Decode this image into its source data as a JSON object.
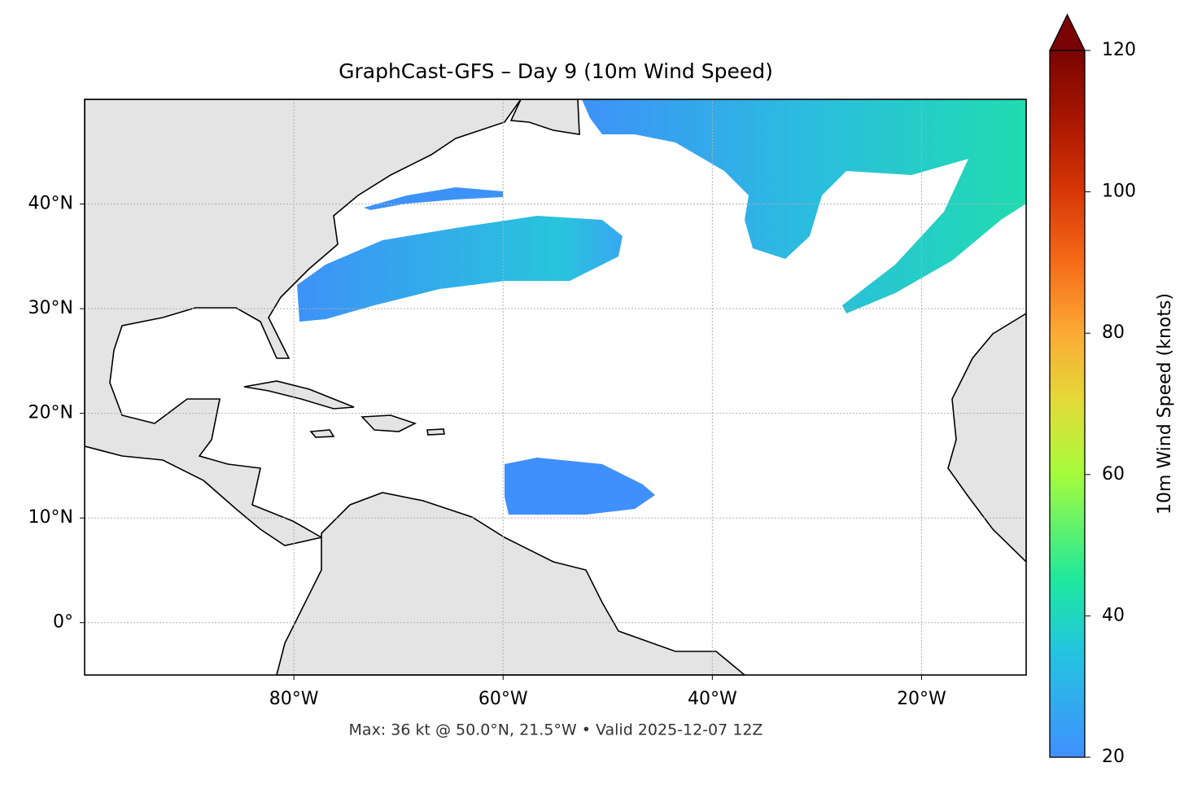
{
  "chart_data": {
    "type": "map",
    "title": "GraphCast-GFS – Day 9 (10m Wind Speed)",
    "footer": "Max: 36 kt @ 50.0°N, 21.5°W • Valid 2025-12-07 12Z",
    "xlim": [
      -100,
      -10
    ],
    "ylim": [
      -5,
      50
    ],
    "xticks": [
      {
        "value": -80,
        "label": "80°W"
      },
      {
        "value": -60,
        "label": "60°W"
      },
      {
        "value": -40,
        "label": "40°W"
      },
      {
        "value": -20,
        "label": "20°W"
      }
    ],
    "yticks": [
      {
        "value": 0,
        "label": "0°"
      },
      {
        "value": 10,
        "label": "10°N"
      },
      {
        "value": 20,
        "label": "20°N"
      },
      {
        "value": 30,
        "label": "30°N"
      },
      {
        "value": 40,
        "label": "40°N"
      }
    ],
    "grid": true,
    "colorbar": {
      "label": "10m Wind Speed (knots)",
      "clim": [
        20,
        120
      ],
      "ticks": [
        20,
        40,
        60,
        80,
        100,
        120
      ],
      "extend": "max"
    }
  }
}
